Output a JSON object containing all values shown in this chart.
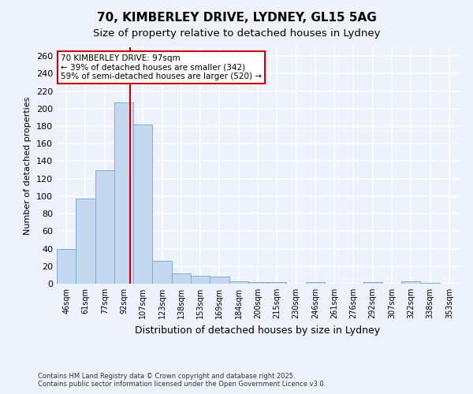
{
  "title": "70, KIMBERLEY DRIVE, LYDNEY, GL15 5AG",
  "subtitle": "Size of property relative to detached houses in Lydney",
  "xlabel": "Distribution of detached houses by size in Lydney",
  "ylabel": "Number of detached properties",
  "categories": [
    "46sqm",
    "61sqm",
    "77sqm",
    "92sqm",
    "107sqm",
    "123sqm",
    "138sqm",
    "153sqm",
    "169sqm",
    "184sqm",
    "200sqm",
    "215sqm",
    "230sqm",
    "246sqm",
    "261sqm",
    "276sqm",
    "292sqm",
    "307sqm",
    "322sqm",
    "338sqm",
    "353sqm"
  ],
  "values": [
    40,
    97,
    130,
    207,
    182,
    26,
    12,
    9,
    8,
    3,
    2,
    2,
    0,
    2,
    0,
    0,
    2,
    0,
    3,
    1,
    0
  ],
  "bar_color": "#c5d8f0",
  "bar_edge_color": "#7aafd4",
  "vline_color": "#cc0000",
  "vline_x": 3.33,
  "annotation_text": "70 KIMBERLEY DRIVE: 97sqm\n← 39% of detached houses are smaller (342)\n59% of semi-detached houses are larger (520) →",
  "annotation_box_facecolor": "#ffffff",
  "annotation_box_edgecolor": "#cc0000",
  "ylim": [
    0,
    270
  ],
  "yticks": [
    0,
    20,
    40,
    60,
    80,
    100,
    120,
    140,
    160,
    180,
    200,
    220,
    240,
    260
  ],
  "footer": "Contains HM Land Registry data © Crown copyright and database right 2025.\nContains public sector information licensed under the Open Government Licence v3.0.",
  "bg_color": "#eef2fc",
  "grid_color": "#ffffff",
  "title_fontsize": 11,
  "subtitle_fontsize": 9.5,
  "tick_fontsize": 7,
  "ylabel_fontsize": 8,
  "xlabel_fontsize": 9,
  "annotation_fontsize": 7.5,
  "footer_fontsize": 6
}
